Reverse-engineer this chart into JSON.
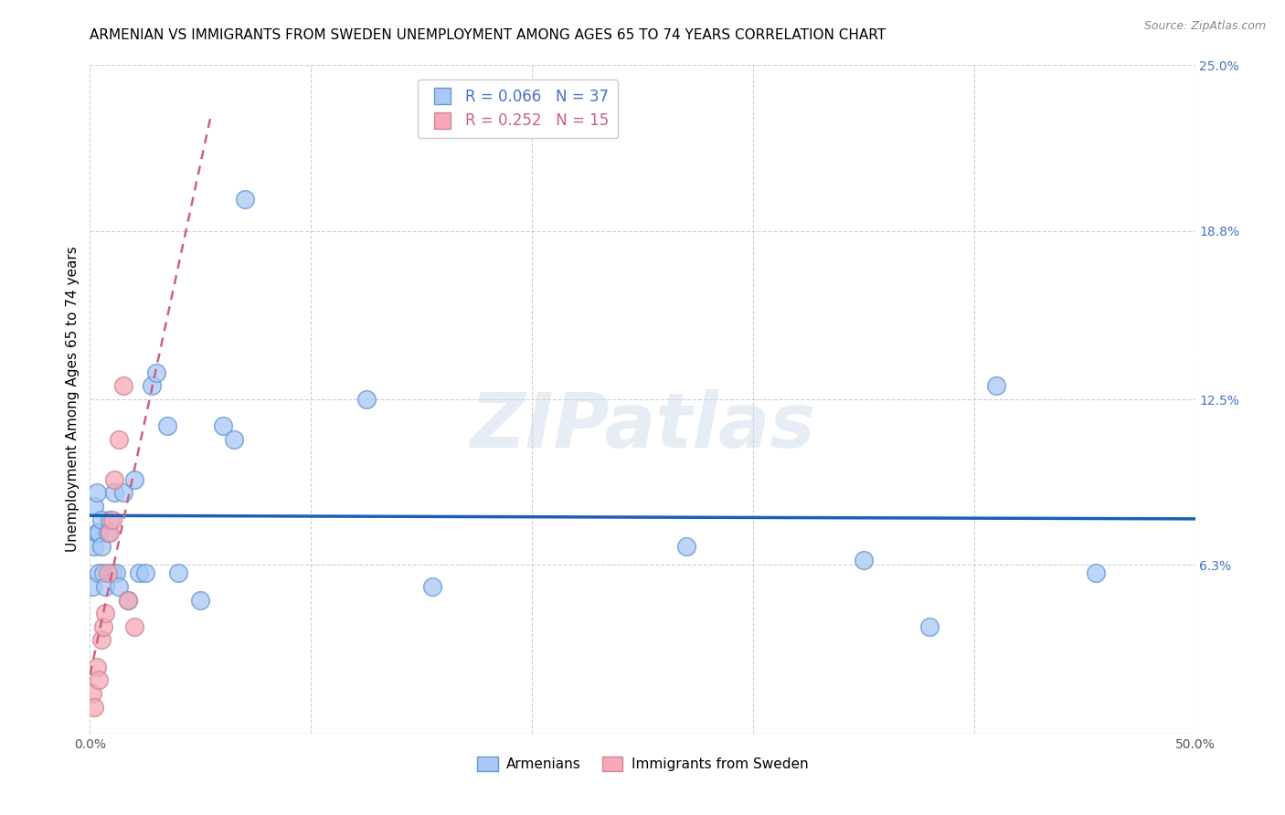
{
  "title": "ARMENIAN VS IMMIGRANTS FROM SWEDEN UNEMPLOYMENT AMONG AGES 65 TO 74 YEARS CORRELATION CHART",
  "source": "Source: ZipAtlas.com",
  "ylabel": "Unemployment Among Ages 65 to 74 years",
  "xlim": [
    0.0,
    0.5
  ],
  "ylim": [
    0.0,
    0.25
  ],
  "xtick_positions": [
    0.0,
    0.1,
    0.2,
    0.3,
    0.4,
    0.5
  ],
  "xtick_labels_show": [
    "0.0%",
    "",
    "",
    "",
    "",
    "50.0%"
  ],
  "yticks_right": [
    0.0,
    0.063,
    0.125,
    0.188,
    0.25
  ],
  "yticklabels_right": [
    "",
    "6.3%",
    "12.5%",
    "18.8%",
    "25.0%"
  ],
  "armenians_R": 0.066,
  "armenians_N": 37,
  "immigrants_R": 0.252,
  "immigrants_N": 15,
  "armenians_color": "#a8c8f8",
  "immigrants_color": "#f8a8b8",
  "armenians_edge_color": "#6699cc",
  "immigrants_edge_color": "#cc8899",
  "trendline_armenians_color": "#1a5fb4",
  "trendline_immigrants_color": "#cc6080",
  "watermark": "ZIPatlas",
  "armenians_x": [
    0.001,
    0.002,
    0.002,
    0.003,
    0.003,
    0.004,
    0.004,
    0.005,
    0.005,
    0.006,
    0.007,
    0.008,
    0.009,
    0.01,
    0.011,
    0.012,
    0.013,
    0.015,
    0.017,
    0.02,
    0.022,
    0.025,
    0.028,
    0.03,
    0.035,
    0.04,
    0.05,
    0.06,
    0.065,
    0.07,
    0.125,
    0.155,
    0.27,
    0.35,
    0.38,
    0.41,
    0.455
  ],
  "armenians_y": [
    0.055,
    0.07,
    0.085,
    0.075,
    0.09,
    0.06,
    0.075,
    0.07,
    0.08,
    0.06,
    0.055,
    0.075,
    0.08,
    0.06,
    0.09,
    0.06,
    0.055,
    0.09,
    0.05,
    0.095,
    0.06,
    0.06,
    0.13,
    0.135,
    0.115,
    0.06,
    0.05,
    0.115,
    0.11,
    0.2,
    0.125,
    0.055,
    0.07,
    0.065,
    0.04,
    0.13,
    0.06
  ],
  "immigrants_x": [
    0.001,
    0.002,
    0.003,
    0.004,
    0.005,
    0.006,
    0.007,
    0.008,
    0.009,
    0.01,
    0.011,
    0.013,
    0.015,
    0.017,
    0.02
  ],
  "immigrants_y": [
    0.015,
    0.01,
    0.025,
    0.02,
    0.035,
    0.04,
    0.045,
    0.06,
    0.075,
    0.08,
    0.095,
    0.11,
    0.13,
    0.05,
    0.04
  ],
  "background_color": "#ffffff",
  "grid_color": "#d0d0d0",
  "title_fontsize": 11,
  "axis_label_fontsize": 11,
  "tick_fontsize": 10,
  "legend_fontsize": 12
}
